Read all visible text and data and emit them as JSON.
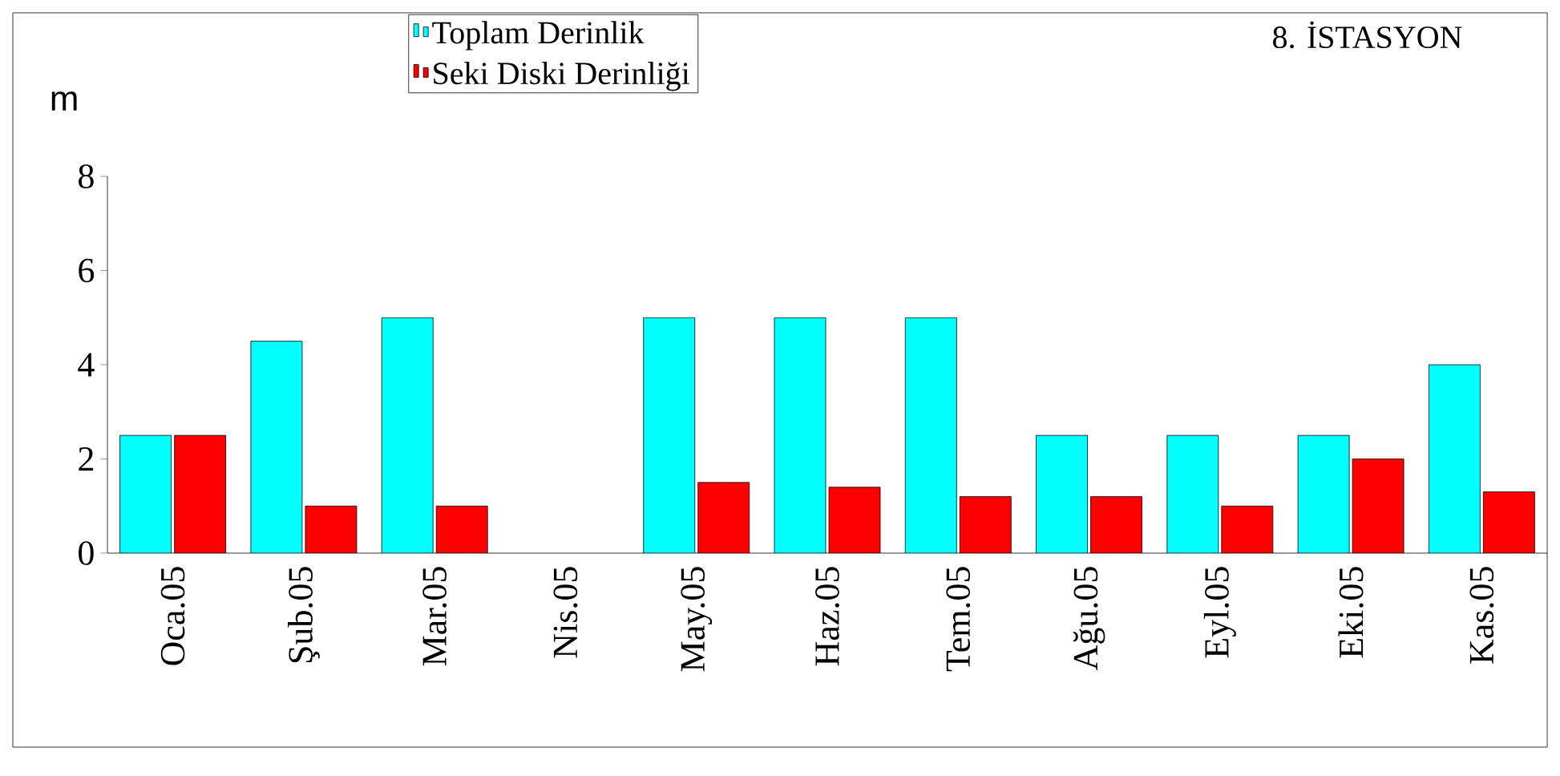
{
  "chart_data": {
    "type": "bar",
    "title": "8. İSTASYON",
    "ylabel": "m",
    "categories": [
      "Oca.05",
      "Şub.05",
      "Mar.05",
      "Nis.05",
      "May.05",
      "Haz.05",
      "Tem.05",
      "Ağu.05",
      "Eyl.05",
      "Eki.05",
      "Kas.05"
    ],
    "series": [
      {
        "name": "Toplam Derinlik",
        "color": "#00ffff",
        "values": [
          2.5,
          4.5,
          5,
          null,
          5,
          5,
          5,
          2.5,
          2.5,
          2.5,
          4
        ]
      },
      {
        "name": "Seki Diski Derinliği",
        "color": "#ff0000",
        "values": [
          2.5,
          1,
          1,
          null,
          1.5,
          1.4,
          1.2,
          1.2,
          1,
          2,
          1.3
        ]
      }
    ],
    "ylim": [
      0,
      8
    ],
    "yticks": [
      0,
      2,
      4,
      6,
      8
    ],
    "grid": false,
    "legend": "top"
  }
}
